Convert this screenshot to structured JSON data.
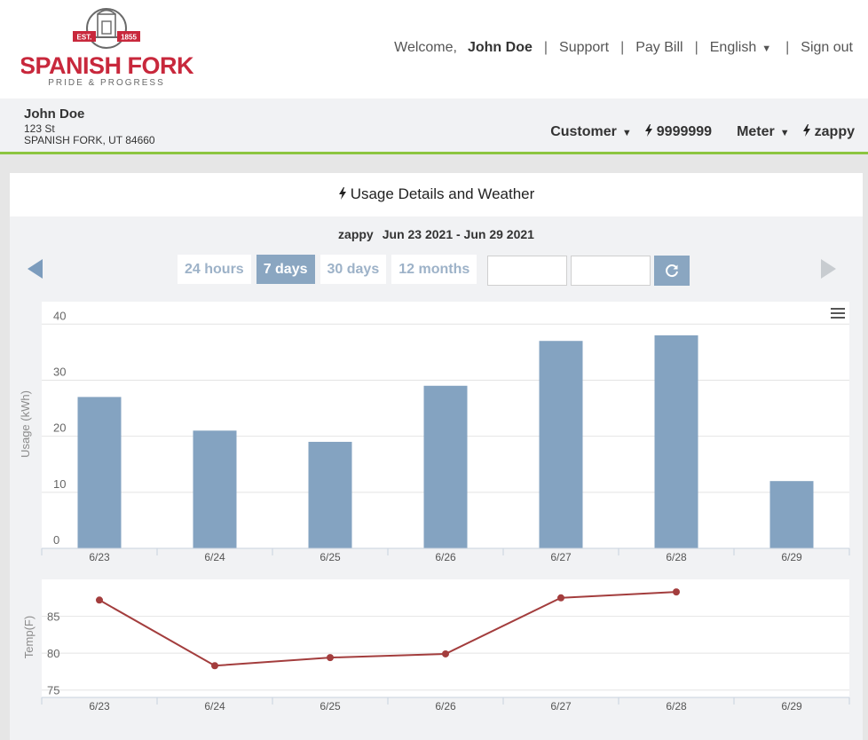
{
  "logo": {
    "top_text": "EST.",
    "year": "1855",
    "name": "SPANISH FORK",
    "tagline": "PRIDE & PROGRESS"
  },
  "nav": {
    "welcome": "Welcome,",
    "user": "John Doe",
    "support": "Support",
    "pay_bill": "Pay Bill",
    "language": "English",
    "sign_out": "Sign out"
  },
  "account": {
    "name": "John Doe",
    "address_line1": "123 St",
    "address_line2": "SPANISH FORK, UT 84660",
    "customer_label": "Customer",
    "customer_id": "9999999",
    "meter_label": "Meter",
    "meter_id": "zappy"
  },
  "panel": {
    "title": "Usage Details and Weather",
    "meter": "zappy",
    "range": "Jun 23 2021 - Jun 29 2021",
    "tabs": [
      "24 hours",
      "7 days",
      "30 days",
      "12 months"
    ],
    "active_tab": "7 days",
    "start_date": "",
    "end_date": ""
  },
  "colors": {
    "bar": "#84a3c1",
    "temp_line": "#a33d3d",
    "accent_green": "#8cc540",
    "logo_red": "#c8283c"
  },
  "chart_data": [
    {
      "type": "bar",
      "categories": [
        "6/23",
        "6/24",
        "6/25",
        "6/26",
        "6/27",
        "6/28",
        "6/29"
      ],
      "values": [
        27,
        21,
        19,
        29,
        37,
        38,
        12
      ],
      "ylabel": "Usage (kWh)",
      "ylim": [
        0,
        44
      ],
      "yticks": [
        0,
        10,
        20,
        30,
        40
      ],
      "grid": true
    },
    {
      "type": "line",
      "categories": [
        "6/23",
        "6/24",
        "6/25",
        "6/26",
        "6/27",
        "6/28",
        "6/29"
      ],
      "values": [
        87.2,
        78.3,
        79.4,
        79.9,
        87.5,
        88.3,
        null
      ],
      "ylabel": "Temp(F)",
      "ylim": [
        74,
        90
      ],
      "yticks": [
        75,
        80,
        85
      ],
      "grid": true
    }
  ]
}
